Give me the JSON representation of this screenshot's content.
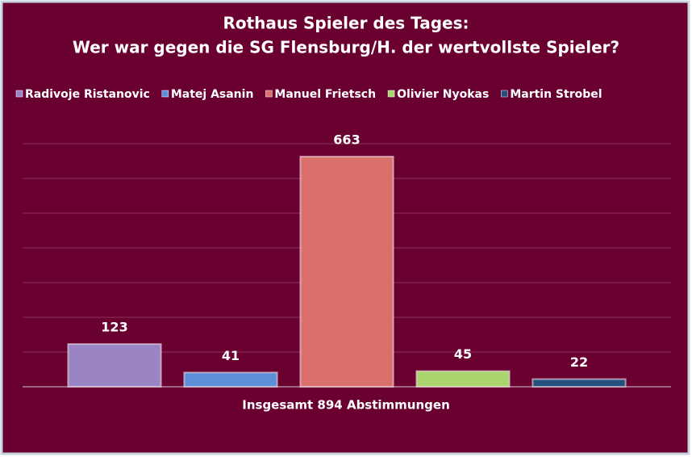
{
  "chart_data": {
    "type": "bar",
    "title": "Rothaus Spieler des Tages:",
    "subtitle": "Wer war gegen die SG Flensburg/H. der wertvollste Spieler?",
    "x_label": "Insgesamt 894 Abstimmungen",
    "categories": [
      null
    ],
    "series": [
      {
        "name": "Radivoje Ristanovic",
        "color": "#9b84c4",
        "values": [
          123
        ]
      },
      {
        "name": "Matej Asanin",
        "color": "#5b8fd8",
        "values": [
          41
        ]
      },
      {
        "name": "Manuel Frietsch",
        "color": "#d9706c",
        "values": [
          663
        ]
      },
      {
        "name": "Olivier Nyokas",
        "color": "#aad46c",
        "values": [
          45
        ]
      },
      {
        "name": "Martin Strobel",
        "color": "#24507e",
        "values": [
          22
        ]
      }
    ],
    "ylim": [
      0,
      700
    ],
    "yticks": [
      0,
      100,
      200,
      300,
      400,
      500,
      600,
      700
    ],
    "grid": true,
    "legend": "top"
  }
}
